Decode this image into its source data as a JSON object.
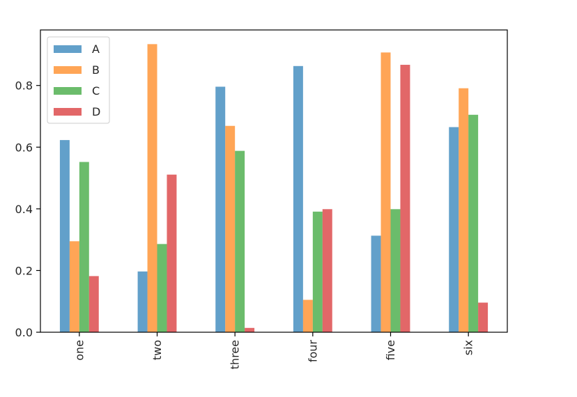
{
  "chart_data": {
    "type": "bar",
    "title": "",
    "xlabel": "",
    "ylabel": "",
    "categories": [
      "one",
      "two",
      "three",
      "four",
      "five",
      "six"
    ],
    "series": [
      {
        "name": "A",
        "color": "#1f77b4",
        "values": [
          0.623,
          0.197,
          0.796,
          0.863,
          0.313,
          0.665
        ]
      },
      {
        "name": "B",
        "color": "#ff7f0e",
        "values": [
          0.295,
          0.934,
          0.669,
          0.105,
          0.907,
          0.791
        ]
      },
      {
        "name": "C",
        "color": "#2ca02c",
        "values": [
          0.552,
          0.286,
          0.588,
          0.391,
          0.399,
          0.705
        ]
      },
      {
        "name": "D",
        "color": "#d62728",
        "values": [
          0.182,
          0.511,
          0.014,
          0.399,
          0.867,
          0.096
        ]
      }
    ],
    "ylim": [
      0,
      0.98
    ],
    "yticks": [
      0.0,
      0.2,
      0.4,
      0.6,
      0.8
    ],
    "ytick_labels": [
      "0.0",
      "0.2",
      "0.4",
      "0.6",
      "0.8"
    ],
    "legend_position": "upper-left",
    "grid": false,
    "bar_alpha": 0.7
  }
}
